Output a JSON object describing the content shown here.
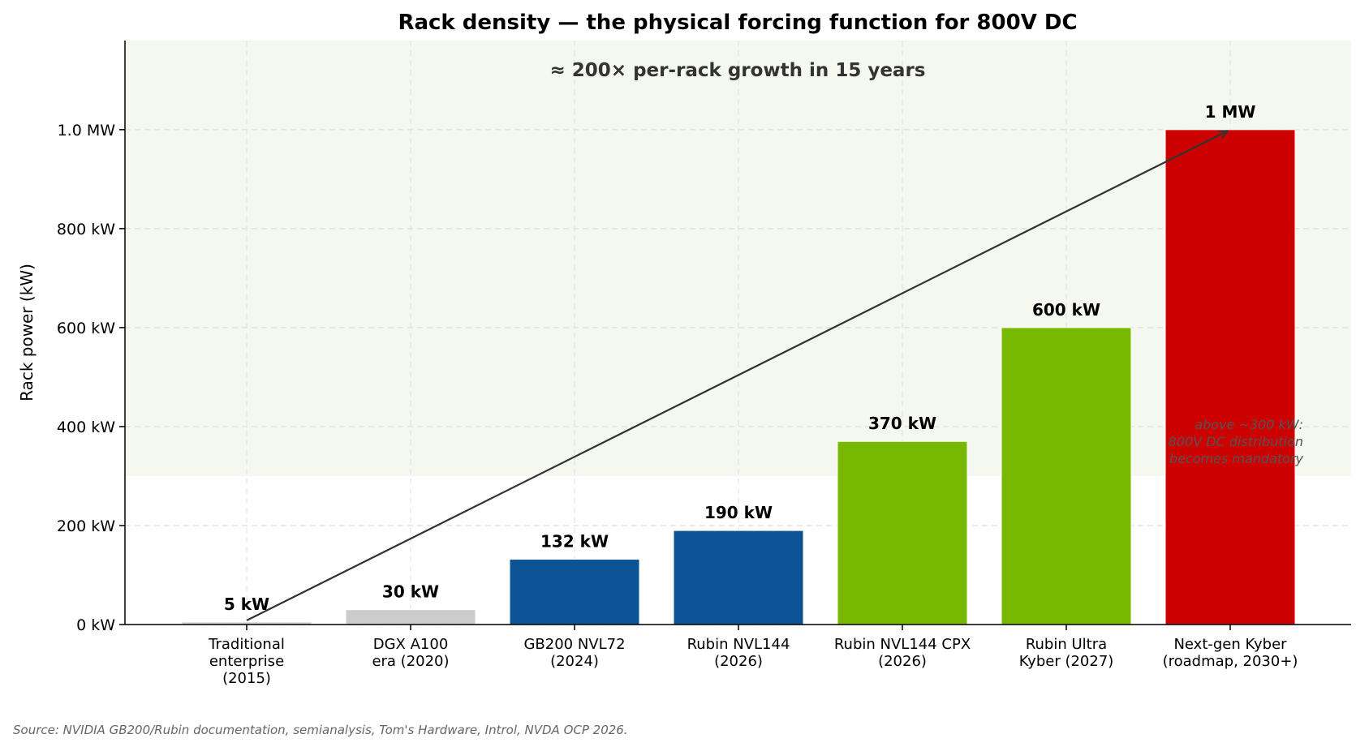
{
  "chart_data": {
    "type": "bar",
    "title": "Rack density — the physical forcing function for 800V DC",
    "ylabel": "Rack power (kW)",
    "xlabel": "",
    "ylim": [
      0,
      1180
    ],
    "yticks": [
      0,
      200,
      400,
      600,
      800,
      1000
    ],
    "ytick_labels": [
      "0 kW",
      "200 kW",
      "400 kW",
      "600 kW",
      "800 kW",
      "1.0 MW"
    ],
    "grid": true,
    "categories": [
      "Traditional\nenterprise\n(2015)",
      "DGX A100\nera (2020)",
      "GB200 NVL72\n(2024)",
      "Rubin NVL144\n(2026)",
      "Rubin NVL144 CPX\n(2026)",
      "Rubin Ultra\nKyber (2027)",
      "Next-gen Kyber\n(roadmap, 2030+)"
    ],
    "values": [
      5,
      30,
      132,
      190,
      370,
      600,
      1000
    ],
    "value_labels": [
      "5 kW",
      "30 kW",
      "132 kW",
      "190 kW",
      "370 kW",
      "600 kW",
      "1 MW"
    ],
    "colors": [
      "#cccccc",
      "#cccccc",
      "#0c5294",
      "#0c5294",
      "#76b900",
      "#76b900",
      "#cc0000"
    ],
    "shaded_region": {
      "from": 300,
      "color": "#f4f8ee"
    },
    "annotations": {
      "growth": "≈ 200× per-rack growth in 15 years",
      "threshold_note": "above ~300 kW:\n800V DC distribution\nbecomes mandatory"
    },
    "trend_arrow": {
      "from_category": 0,
      "from_value": 5,
      "to_category": 6,
      "to_value": 1000
    }
  },
  "source": "Source: NVIDIA GB200/Rubin documentation, semianalysis, Tom's Hardware, Introl, NVDA OCP 2026."
}
